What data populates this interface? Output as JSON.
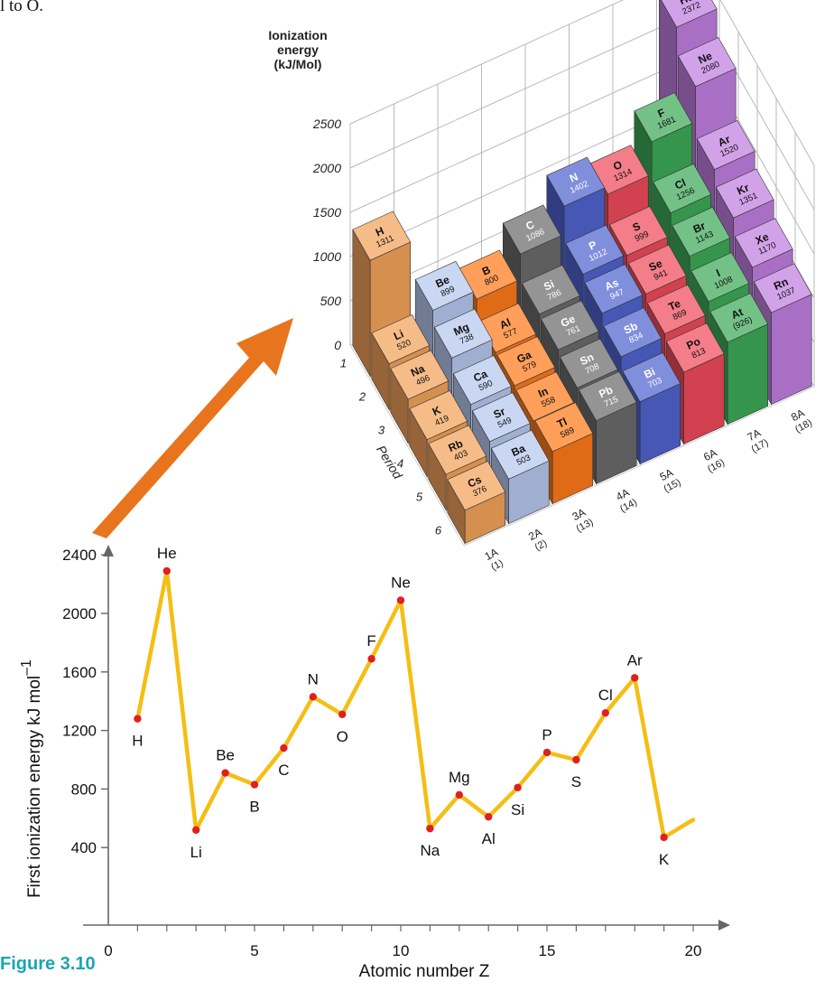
{
  "top_text": "l to O.",
  "figure_label": "Figure 3.10",
  "colors": {
    "line": "#f5be14",
    "point": "#e02020",
    "axis": "#666666",
    "arrow": "#e8751d",
    "group_1A": "#f2a25a",
    "group_2A": "#b6c7ee",
    "group_3A": "#ff7a1a",
    "group_4A": "#6b6b6b",
    "group_5A": "#4f63cf",
    "group_6A": "#ef4a5a",
    "group_7A": "#3ca957",
    "group_8A": "#c07ee0"
  },
  "chart_data": [
    {
      "type": "bar",
      "title": "",
      "zlabel": "Ionization energy (kJ/Mol)",
      "zlim": [
        0,
        2500
      ],
      "z_ticks": [
        "0",
        "500",
        "1000",
        "1500",
        "2000",
        "2500"
      ],
      "right_ticks": [
        "0",
        "500",
        "1000",
        "1500",
        "2000",
        "2500"
      ],
      "period_label": "Period",
      "periods": [
        "1",
        "2",
        "3",
        "4",
        "5",
        "6"
      ],
      "groups": [
        {
          "label": "1A",
          "sub": "(1)"
        },
        {
          "label": "2A",
          "sub": "(2)"
        },
        {
          "label": "3A",
          "sub": "(13)"
        },
        {
          "label": "4A",
          "sub": "(14)"
        },
        {
          "label": "5A",
          "sub": "(15)"
        },
        {
          "label": "6A",
          "sub": "(16)"
        },
        {
          "label": "7A",
          "sub": "(17)"
        },
        {
          "label": "8A",
          "sub": "(18)"
        }
      ],
      "elements": [
        {
          "symbol": "H",
          "value": 1311,
          "label": "1311",
          "group": 0,
          "period": 1
        },
        {
          "symbol": "He",
          "value": 2372,
          "label": "2372",
          "group": 7,
          "period": 1
        },
        {
          "symbol": "Li",
          "value": 520,
          "label": "520",
          "group": 0,
          "period": 2
        },
        {
          "symbol": "Be",
          "value": 899,
          "label": "899",
          "group": 1,
          "period": 2
        },
        {
          "symbol": "B",
          "value": 800,
          "label": "800",
          "group": 2,
          "period": 2
        },
        {
          "symbol": "C",
          "value": 1086,
          "label": "1086",
          "group": 3,
          "period": 2
        },
        {
          "symbol": "N",
          "value": 1402,
          "label": "1402",
          "group": 4,
          "period": 2
        },
        {
          "symbol": "O",
          "value": 1314,
          "label": "1314",
          "group": 5,
          "period": 2
        },
        {
          "symbol": "F",
          "value": 1681,
          "label": "1681",
          "group": 6,
          "period": 2
        },
        {
          "symbol": "Ne",
          "value": 2080,
          "label": "2080",
          "group": 7,
          "period": 2
        },
        {
          "symbol": "Na",
          "value": 496,
          "label": "496",
          "group": 0,
          "period": 3
        },
        {
          "symbol": "Mg",
          "value": 738,
          "label": "738",
          "group": 1,
          "period": 3
        },
        {
          "symbol": "Al",
          "value": 577,
          "label": "577",
          "group": 2,
          "period": 3
        },
        {
          "symbol": "Si",
          "value": 786,
          "label": "786",
          "group": 3,
          "period": 3
        },
        {
          "symbol": "P",
          "value": 1012,
          "label": "1012",
          "group": 4,
          "period": 3
        },
        {
          "symbol": "S",
          "value": 999,
          "label": "999",
          "group": 5,
          "period": 3
        },
        {
          "symbol": "Cl",
          "value": 1256,
          "label": "1256",
          "group": 6,
          "period": 3
        },
        {
          "symbol": "Ar",
          "value": 1520,
          "label": "1520",
          "group": 7,
          "period": 3
        },
        {
          "symbol": "K",
          "value": 419,
          "label": "419",
          "group": 0,
          "period": 4
        },
        {
          "symbol": "Ca",
          "value": 590,
          "label": "590",
          "group": 1,
          "period": 4
        },
        {
          "symbol": "Ga",
          "value": 579,
          "label": "579",
          "group": 2,
          "period": 4
        },
        {
          "symbol": "Ge",
          "value": 761,
          "label": "761",
          "group": 3,
          "period": 4
        },
        {
          "symbol": "As",
          "value": 947,
          "label": "947",
          "group": 4,
          "period": 4
        },
        {
          "symbol": "Se",
          "value": 941,
          "label": "941",
          "group": 5,
          "period": 4
        },
        {
          "symbol": "Br",
          "value": 1143,
          "label": "1143",
          "group": 6,
          "period": 4
        },
        {
          "symbol": "Kr",
          "value": 1351,
          "label": "1351",
          "group": 7,
          "period": 4
        },
        {
          "symbol": "Rb",
          "value": 403,
          "label": "403",
          "group": 0,
          "period": 5
        },
        {
          "symbol": "Sr",
          "value": 549,
          "label": "549",
          "group": 1,
          "period": 5
        },
        {
          "symbol": "In",
          "value": 558,
          "label": "558",
          "group": 2,
          "period": 5
        },
        {
          "symbol": "Sn",
          "value": 708,
          "label": "708",
          "group": 3,
          "period": 5
        },
        {
          "symbol": "Sb",
          "value": 834,
          "label": "834",
          "group": 4,
          "period": 5
        },
        {
          "symbol": "Te",
          "value": 869,
          "label": "869",
          "group": 5,
          "period": 5
        },
        {
          "symbol": "I",
          "value": 1008,
          "label": "1008",
          "group": 6,
          "period": 5
        },
        {
          "symbol": "Xe",
          "value": 1170,
          "label": "1170",
          "group": 7,
          "period": 5
        },
        {
          "symbol": "Cs",
          "value": 376,
          "label": "376",
          "group": 0,
          "period": 6
        },
        {
          "symbol": "Ba",
          "value": 503,
          "label": "503",
          "group": 1,
          "period": 6
        },
        {
          "symbol": "Tl",
          "value": 589,
          "label": "589",
          "group": 2,
          "period": 6
        },
        {
          "symbol": "Pb",
          "value": 715,
          "label": "715",
          "group": 3,
          "period": 6
        },
        {
          "symbol": "Bi",
          "value": 703,
          "label": "703",
          "group": 4,
          "period": 6
        },
        {
          "symbol": "Po",
          "value": 813,
          "label": "813",
          "group": 5,
          "period": 6
        },
        {
          "symbol": "At",
          "value": 926,
          "label": "(926)",
          "group": 6,
          "period": 6
        },
        {
          "symbol": "Rn",
          "value": 1037,
          "label": "1037",
          "group": 7,
          "period": 6
        }
      ]
    },
    {
      "type": "line",
      "title": "",
      "xlabel": "Atomic number Z",
      "ylabel": "First ionization energy kJ mol",
      "ylabel_sup": "–1",
      "xlim": [
        0,
        21
      ],
      "ylim": [
        0,
        2600
      ],
      "x_ticks": [
        0,
        5,
        10,
        15,
        20
      ],
      "y_ticks": [
        400,
        800,
        1200,
        1600,
        2000,
        2400
      ],
      "label_positions": [
        "below",
        "above",
        "below",
        "above",
        "below",
        "below",
        "above",
        "below",
        "above",
        "above",
        "below",
        "above",
        "below",
        "below",
        "above",
        "below",
        "above",
        "above",
        "below"
      ],
      "points": [
        {
          "x": 1,
          "y": 1280,
          "label": "H"
        },
        {
          "x": 2,
          "y": 2290,
          "label": "He"
        },
        {
          "x": 3,
          "y": 520,
          "label": "Li"
        },
        {
          "x": 4,
          "y": 910,
          "label": "Be"
        },
        {
          "x": 5,
          "y": 830,
          "label": "B"
        },
        {
          "x": 6,
          "y": 1080,
          "label": "C"
        },
        {
          "x": 7,
          "y": 1430,
          "label": "N"
        },
        {
          "x": 8,
          "y": 1310,
          "label": "O"
        },
        {
          "x": 9,
          "y": 1690,
          "label": "F"
        },
        {
          "x": 10,
          "y": 2090,
          "label": "Ne"
        },
        {
          "x": 11,
          "y": 530,
          "label": "Na"
        },
        {
          "x": 12,
          "y": 760,
          "label": "Mg"
        },
        {
          "x": 13,
          "y": 610,
          "label": "Al"
        },
        {
          "x": 14,
          "y": 810,
          "label": "Si"
        },
        {
          "x": 15,
          "y": 1050,
          "label": "P"
        },
        {
          "x": 16,
          "y": 1000,
          "label": "S"
        },
        {
          "x": 17,
          "y": 1320,
          "label": "Cl"
        },
        {
          "x": 18,
          "y": 1560,
          "label": "Ar"
        },
        {
          "x": 19,
          "y": 470,
          "label": "K"
        }
      ],
      "trailing_segment_end": {
        "x": 20,
        "y": 590
      }
    }
  ]
}
